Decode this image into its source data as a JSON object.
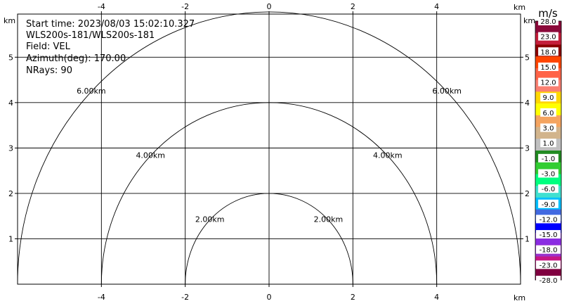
{
  "chart_data": {
    "type": "heatmap",
    "subtype": "radar-ppi-sector",
    "meta": {
      "start_time": "Start time: 2023/08/03 15:02:10.327",
      "instrument": "WLS200s-181/WLS200s-181",
      "field": "Field: VEL",
      "azimuth": "Azimuth(deg): 170.00",
      "nrays": "NRays: 90"
    },
    "units": {
      "axis": "km",
      "colorbar": "m/s"
    },
    "x_ticks": [
      -4,
      -2,
      0,
      2,
      4
    ],
    "y_ticks": [
      1,
      2,
      3,
      4,
      5
    ],
    "x_range": [
      -6.0,
      6.0
    ],
    "y_range": [
      0.0,
      5.95
    ],
    "range_ring_labels": [
      "2.00km",
      "2.00km",
      "4.00km",
      "4.00km",
      "6.00km",
      "6.00km"
    ],
    "max_range_km": 6.0,
    "colorbar": {
      "colors": [
        "#8b0a3a",
        "#c41e3a",
        "#8b0000",
        "#ff4500",
        "#ff6347",
        "#fa8072",
        "#ffd700",
        "#ffff00",
        "#f4a460",
        "#d2b48c",
        "#c0c0c0",
        "#228b22",
        "#32cd32",
        "#00ff7f",
        "#40e0d0",
        "#00bfff",
        "#4169e1",
        "#0000ff",
        "#8a2be2",
        "#9932cc",
        "#c71585",
        "#800040"
      ],
      "labels": [
        "28.0",
        "23.0",
        "18.0",
        "15.0",
        "12.0",
        "9.0",
        "6.0",
        "3.0",
        "1.0",
        "-1.0",
        "-3.0",
        "-6.0",
        "-9.0",
        "-12.0",
        "-15.0",
        "-18.0",
        "-23.0",
        "-28.0"
      ]
    },
    "grid": true
  }
}
